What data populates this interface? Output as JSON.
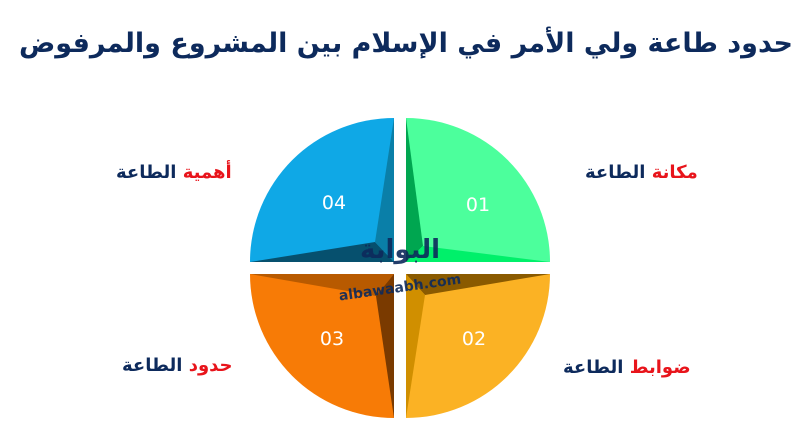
{
  "title": "حدود طاعة ولي الأمر في الإسلام بين المشروع والمرفوض",
  "segments": [
    {
      "number": "01",
      "highlight": "مكانة",
      "rest": "الطاعة",
      "color": "#4cff9c"
    },
    {
      "number": "02",
      "highlight": "ضوابط",
      "rest": "الطاعة",
      "color": "#fbb224"
    },
    {
      "number": "03",
      "highlight": "حدود",
      "rest": "الطاعة",
      "color": "#f77b06"
    },
    {
      "number": "04",
      "highlight": "أهمية",
      "rest": "الطاعة",
      "color": "#0fa8e6"
    }
  ],
  "watermark": {
    "arabic": "البوابة",
    "latin": "albawaabh.com"
  },
  "colors": {
    "title": "#0d2a5c",
    "highlight": "#e8141b"
  }
}
